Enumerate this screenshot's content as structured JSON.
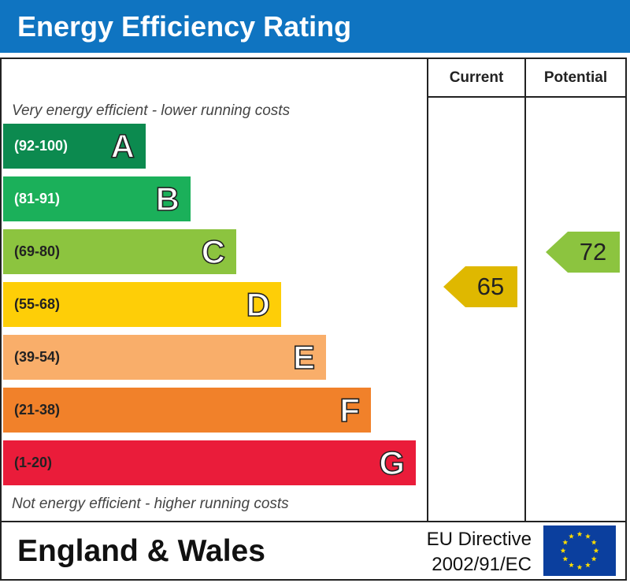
{
  "header": {
    "title": "Energy Efficiency Rating"
  },
  "columns": {
    "current": "Current",
    "potential": "Potential"
  },
  "notes": {
    "top": "Very energy efficient - lower running costs",
    "bottom": "Not energy efficient - higher running costs"
  },
  "bands": [
    {
      "range": "(92-100)",
      "letter": "A",
      "color": "#0c8a4f",
      "text_color": "#ffffff"
    },
    {
      "range": "(81-91)",
      "letter": "B",
      "color": "#1bb05a",
      "text_color": "#ffffff"
    },
    {
      "range": "(69-80)",
      "letter": "C",
      "color": "#8cc43f",
      "text_color": "#222222"
    },
    {
      "range": "(55-68)",
      "letter": "D",
      "color": "#fece07",
      "text_color": "#222222"
    },
    {
      "range": "(39-54)",
      "letter": "E",
      "color": "#f9ae6a",
      "text_color": "#222222"
    },
    {
      "range": "(21-38)",
      "letter": "F",
      "color": "#f1812a",
      "text_color": "#222222"
    },
    {
      "range": "(1-20)",
      "letter": "G",
      "color": "#ea1c3a",
      "text_color": "#222222"
    }
  ],
  "ratings": {
    "current": {
      "value": "65",
      "band": "D",
      "color": "#dfb800"
    },
    "potential": {
      "value": "72",
      "band": "C",
      "color": "#8cc43f"
    }
  },
  "footer": {
    "region": "England & Wales",
    "directive_line1": "EU Directive",
    "directive_line2": "2002/91/EC",
    "flag_icon": "eu-flag-icon",
    "flag_color": "#0b3f9e",
    "star_color": "#ffdd00"
  }
}
